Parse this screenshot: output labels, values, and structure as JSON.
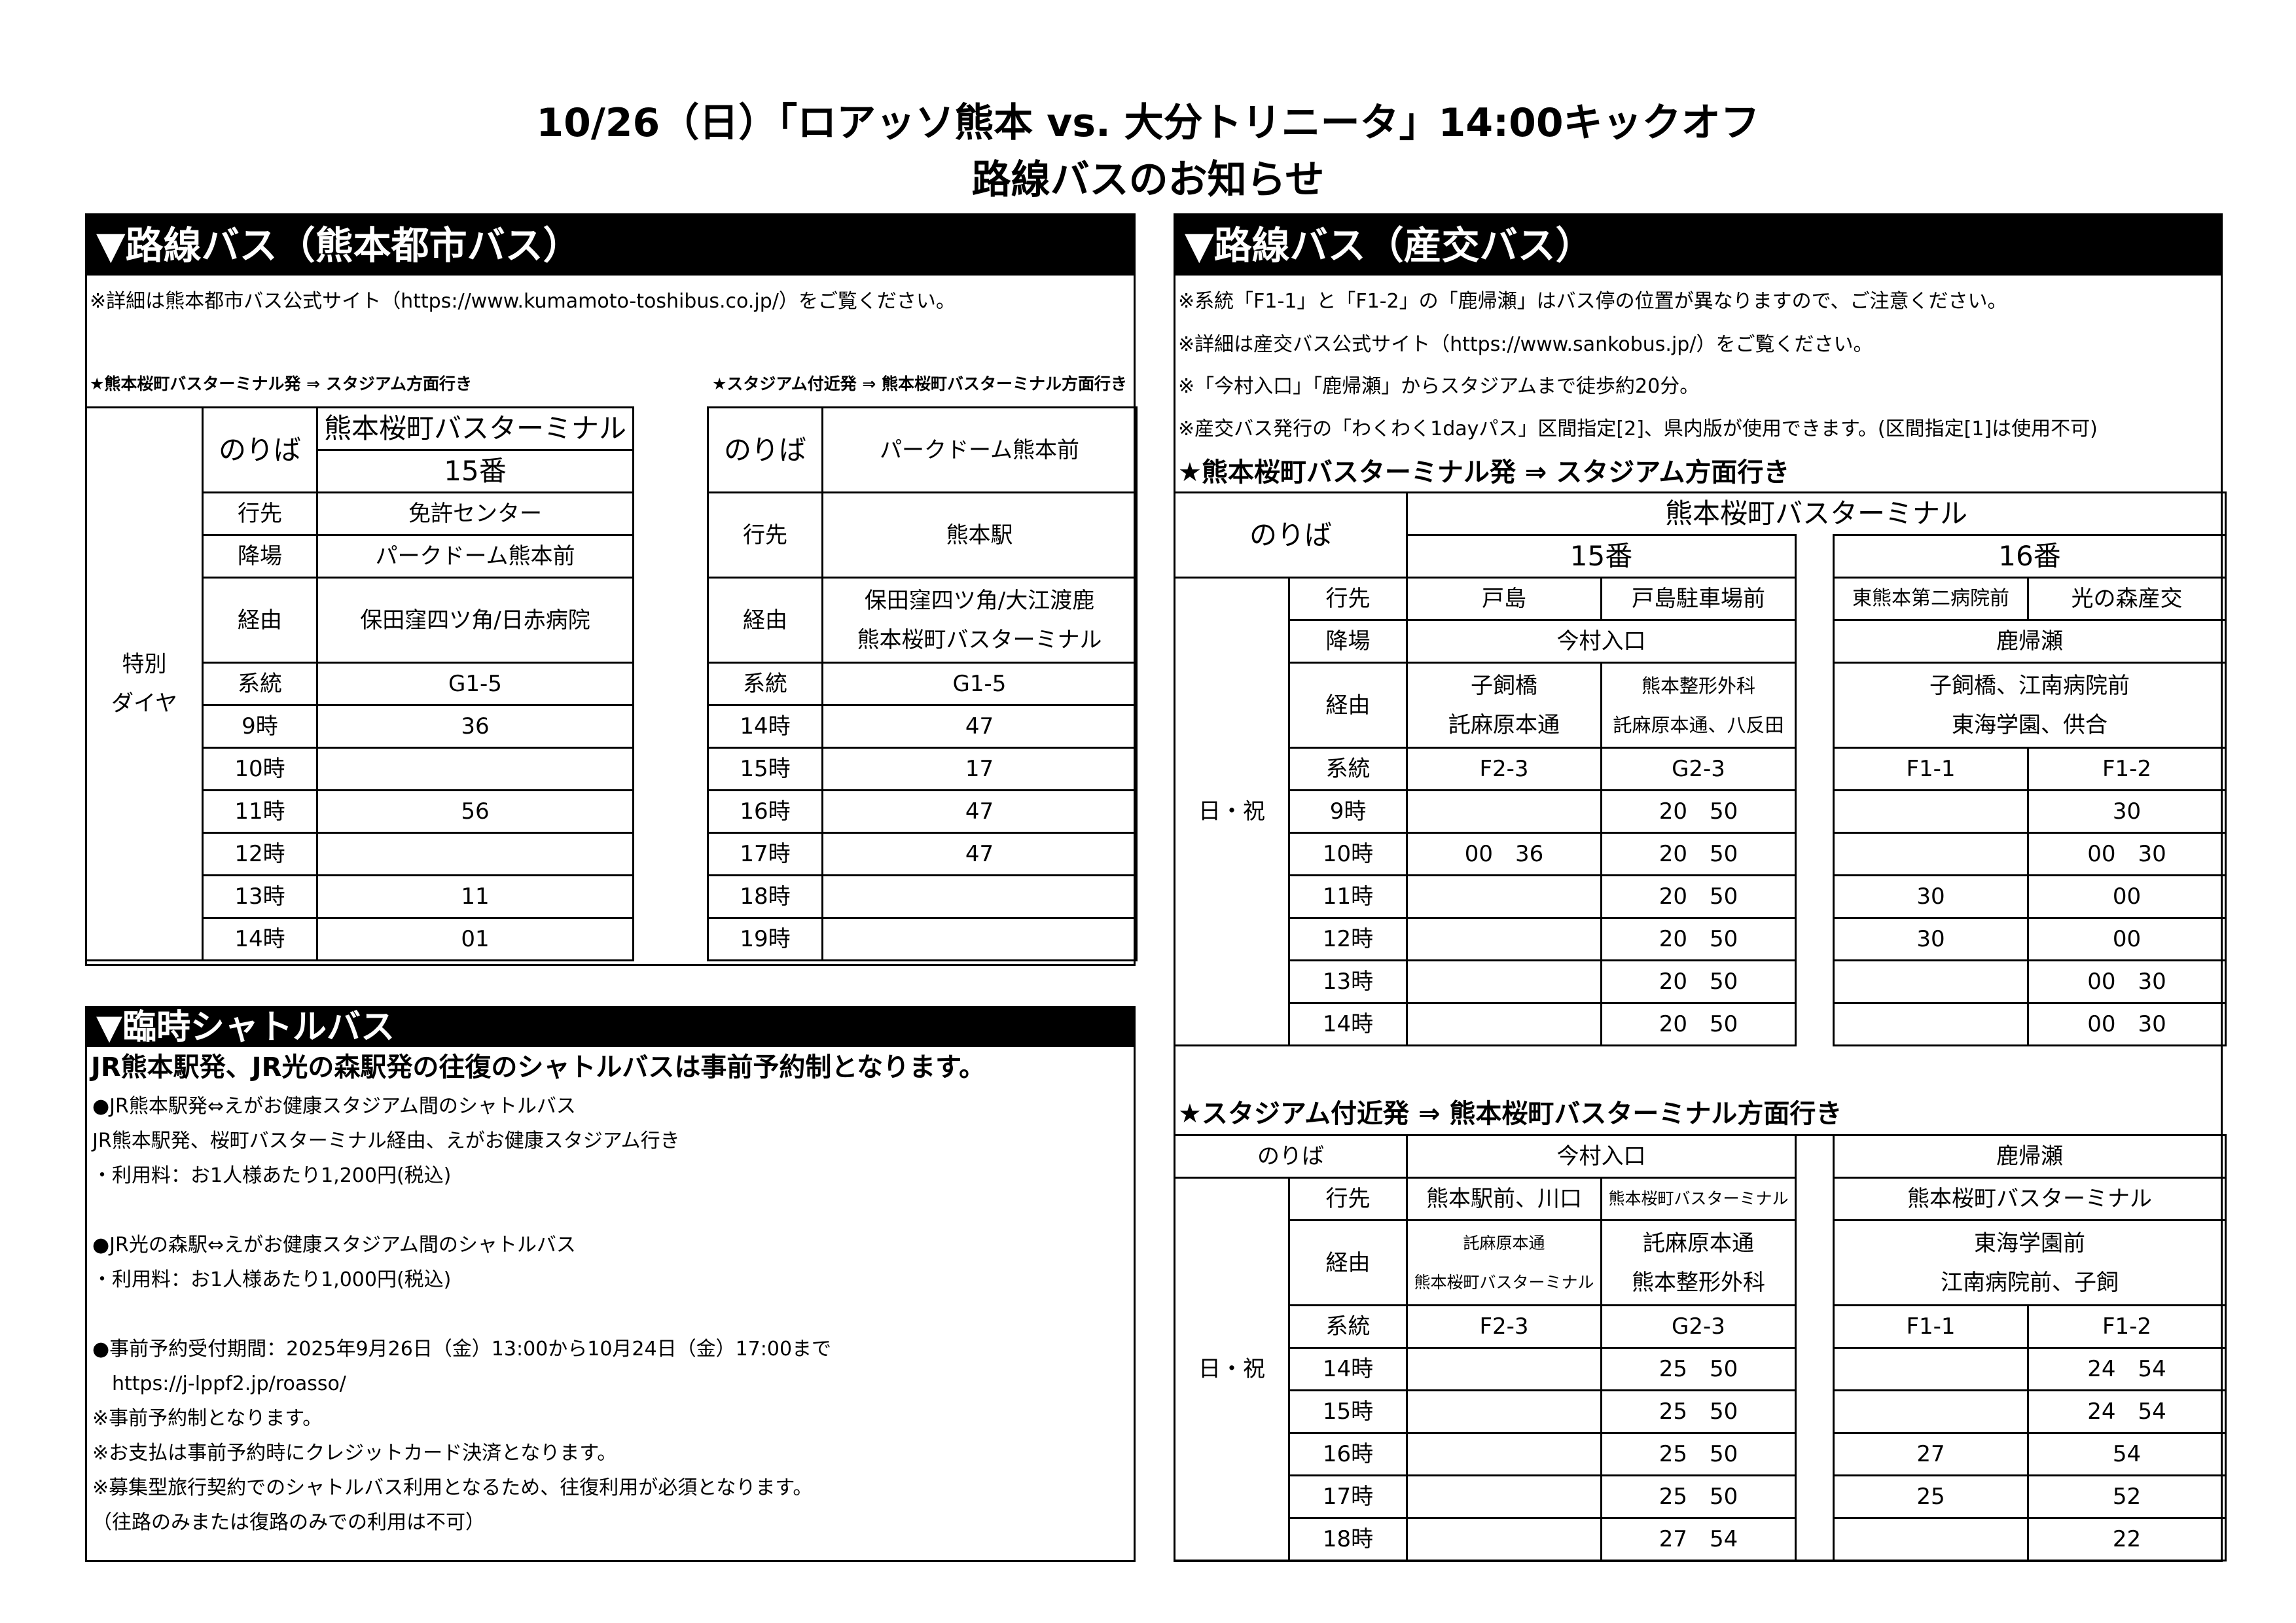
{
  "header": {
    "title_line1": "10/26（日）「ロアッソ熊本 vs. 大分トリニータ」14:00キックオフ",
    "title_line2": "路線バスのお知らせ"
  },
  "left": {
    "heading": "▼路線バス（熊本都市バス）",
    "note": "※詳細は熊本都市バス公式サイト（https://www.kumamoto-toshibus.co.jp/）をご覧ください。",
    "outbound_title": "★熊本桜町バスターミナル発 ⇒ スタジアム方面行き",
    "inbound_title": "★スタジアム付近発 ⇒ 熊本桜町バスターミナル方面行き",
    "labels": {
      "platform": "のりば",
      "dest": "行先",
      "alight": "降場",
      "via": "経由",
      "route": "系統"
    },
    "table1": {
      "side_label": "特別\nダイヤ",
      "platform": "熊本桜町バスターミナル",
      "berth": "15番",
      "dest": "免許センター",
      "alight": "パークドーム熊本前",
      "via": "保田窪四ツ角/日赤病院",
      "route": "G1-5",
      "times": [
        {
          "hour": "9時",
          "min": "36"
        },
        {
          "hour": "10時",
          "min": ""
        },
        {
          "hour": "11時",
          "min": "56"
        },
        {
          "hour": "12時",
          "min": ""
        },
        {
          "hour": "13時",
          "min": "11"
        },
        {
          "hour": "14時",
          "min": "01"
        }
      ]
    },
    "table2": {
      "platform": "パークドーム熊本前",
      "dest": "熊本駅",
      "via": "保田窪四ツ角/大江渡鹿\n熊本桜町バスターミナル",
      "route": "G1-5",
      "times": [
        {
          "hour": "14時",
          "min": "47"
        },
        {
          "hour": "15時",
          "min": "17"
        },
        {
          "hour": "16時",
          "min": "47"
        },
        {
          "hour": "17時",
          "min": "47"
        },
        {
          "hour": "18時",
          "min": ""
        },
        {
          "hour": "19時",
          "min": ""
        }
      ]
    }
  },
  "shuttle": {
    "heading": "▼臨時シャトルバス",
    "lead": "JR熊本駅発、JR光の森駅発の往復のシャトルバスは事前予約制となります。",
    "lines": [
      "●JR熊本駅発⇔えがお健康スタジアム間のシャトルバス",
      "JR熊本駅発、桜町バスターミナル経由、えがお健康スタジアム行き",
      "・利用料：お1人様あたり1,200円(税込)",
      "",
      "●JR光の森駅⇔えがお健康スタジアム間のシャトルバス",
      "・利用料：お1人様あたり1,000円(税込)",
      "",
      "●事前予約受付期間：2025年9月26日（金）13:00から10月24日（金）17:00まで",
      "　https://j-lppf2.jp/roasso/",
      "※事前予約制となります。",
      "※お支払は事前予約時にクレジットカード決済となります。",
      "※募集型旅行契約でのシャトルバス利用となるため、往復利用が必須となります。",
      "（往路のみまたは復路のみでの利用は不可）"
    ]
  },
  "right": {
    "heading": "▼路線バス（産交バス）",
    "notes": [
      "※系統「F1-1」と「F1-2」の「鹿帰瀬」はバス停の位置が異なりますので、ご注意ください。",
      "※詳細は産交バス公式サイト（https://www.sankobus.jp/）をご覧ください。",
      "※「今村入口」「鹿帰瀬」からスタジアムまで徒歩約20分。",
      "※産交バス発行の「わくわく1dayパス」区間指定[2]、県内版が使用できます。(区間指定[1]は使用不可)"
    ],
    "outbound_title": "★熊本桜町バスターミナル発 ⇒ スタジアム方面行き",
    "inbound_title": "★スタジアム付近発 ⇒ 熊本桜町バスターミナル方面行き",
    "labels": {
      "platform": "のりば",
      "dest": "行先",
      "alight": "降場",
      "via": "経由",
      "route": "系統",
      "day": "日・祝"
    },
    "table1": {
      "platform": "熊本桜町バスターミナル",
      "berth_a": "15番",
      "berth_b": "16番",
      "dest": [
        "戸島",
        "戸島駐車場前",
        "東熊本第二病院前",
        "光の森産交"
      ],
      "alight_a": "今村入口",
      "alight_b": "鹿帰瀬",
      "via": [
        "子飼橋\n託麻原本通",
        "熊本整形外科\n託麻原本通、八反田",
        "子飼橋、江南病院前\n東海学園、供合"
      ],
      "routes": [
        "F2-3",
        "G2-3",
        "F1-1",
        "F1-2"
      ],
      "times": [
        {
          "hour": "9時",
          "mins": [
            "",
            "20　50",
            "",
            "30"
          ]
        },
        {
          "hour": "10時",
          "mins": [
            "00　36",
            "20　50",
            "",
            "00　30"
          ]
        },
        {
          "hour": "11時",
          "mins": [
            "",
            "20　50",
            "30",
            "00"
          ]
        },
        {
          "hour": "12時",
          "mins": [
            "",
            "20　50",
            "30",
            "00"
          ]
        },
        {
          "hour": "13時",
          "mins": [
            "",
            "20　50",
            "",
            "00　30"
          ]
        },
        {
          "hour": "14時",
          "mins": [
            "",
            "20　50",
            "",
            "00　30"
          ]
        }
      ]
    },
    "table2": {
      "platform_a": "今村入口",
      "platform_b": "鹿帰瀬",
      "dest": [
        "熊本駅前、川口",
        "熊本桜町バスターミナル",
        "熊本桜町バスターミナル"
      ],
      "via": [
        "託麻原本通\n熊本桜町バスターミナル",
        "託麻原本通\n熊本整形外科",
        "東海学園前\n江南病院前、子飼"
      ],
      "routes": [
        "F2-3",
        "G2-3",
        "F1-1",
        "F1-2"
      ],
      "times": [
        {
          "hour": "14時",
          "mins": [
            "",
            "25　50",
            "",
            "24　54"
          ]
        },
        {
          "hour": "15時",
          "mins": [
            "",
            "25　50",
            "",
            "24　54"
          ]
        },
        {
          "hour": "16時",
          "mins": [
            "",
            "25　50",
            "27",
            "54"
          ]
        },
        {
          "hour": "17時",
          "mins": [
            "",
            "25　50",
            "25",
            "52"
          ]
        },
        {
          "hour": "18時",
          "mins": [
            "",
            "27　54",
            "",
            "22"
          ]
        }
      ]
    }
  }
}
